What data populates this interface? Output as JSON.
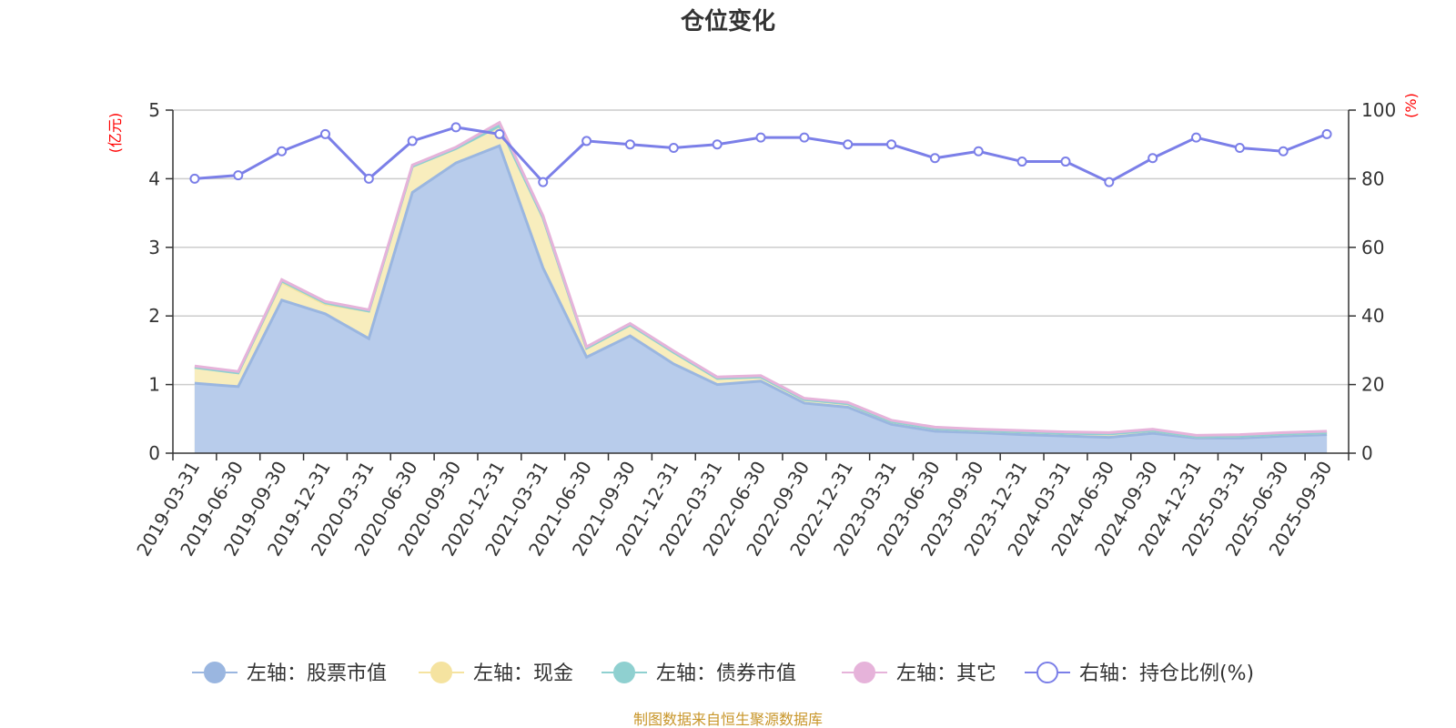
{
  "chart_data": {
    "type": "area",
    "title": "仓位变化",
    "source": "制图数据来自恒生聚源数据库",
    "left_unit": "(亿元)",
    "right_unit": "(%)",
    "ylim_left": [
      0,
      5
    ],
    "ylim_right": [
      0,
      100
    ],
    "yticks_left": [
      "0",
      "1",
      "2",
      "3",
      "4",
      "5"
    ],
    "yticks_right": [
      "0",
      "20",
      "40",
      "60",
      "80",
      "100"
    ],
    "categories": [
      "2019-03-31",
      "2019-06-30",
      "2019-09-30",
      "2019-12-31",
      "2020-03-31",
      "2020-06-30",
      "2020-09-30",
      "2020-12-31",
      "2021-03-31",
      "2021-06-30",
      "2021-09-30",
      "2021-12-31",
      "2022-03-31",
      "2022-06-30",
      "2022-09-30",
      "2022-12-31",
      "2023-03-31",
      "2023-06-30",
      "2023-09-30",
      "2023-12-31",
      "2024-03-31",
      "2024-06-30",
      "2024-09-30",
      "2024-12-31",
      "2025-03-31",
      "2025-06-30",
      "2025-09-30"
    ],
    "series": [
      {
        "name": "左轴：股票市值",
        "axis": "left",
        "stack": true,
        "color": "#9ab6e0",
        "fill": "#b8cceb",
        "values": [
          1.02,
          0.97,
          2.23,
          2.03,
          1.67,
          3.8,
          4.23,
          4.48,
          2.7,
          1.4,
          1.71,
          1.3,
          1.0,
          1.05,
          0.73,
          0.67,
          0.42,
          0.32,
          0.3,
          0.27,
          0.25,
          0.23,
          0.29,
          0.22,
          0.22,
          0.25,
          0.27
        ]
      },
      {
        "name": "左轴：现金",
        "axis": "left",
        "stack": true,
        "color": "#f5e3a0",
        "fill": "#f8edbd",
        "values": [
          0.23,
          0.2,
          0.26,
          0.14,
          0.4,
          0.38,
          0.21,
          0.29,
          0.73,
          0.13,
          0.16,
          0.17,
          0.09,
          0.06,
          0.05,
          0.05,
          0.04,
          0.04,
          0.03,
          0.04,
          0.04,
          0.05,
          0.04,
          0.02,
          0.03,
          0.03,
          0.03
        ]
      },
      {
        "name": "左轴：债券市值",
        "axis": "left",
        "stack": true,
        "color": "#8fd0d0",
        "fill": "#b7e2e2",
        "values": [
          0,
          0,
          0.02,
          0.02,
          0,
          0,
          0,
          0,
          0,
          0,
          0,
          0,
          0,
          0,
          0,
          0,
          0,
          0,
          0,
          0,
          0,
          0,
          0,
          0,
          0,
          0,
          0
        ]
      },
      {
        "name": "左轴：其它",
        "axis": "left",
        "stack": true,
        "color": "#e6b3da",
        "fill": "#f0cfe8",
        "values": [
          0.02,
          0.02,
          0.02,
          0.02,
          0.02,
          0.02,
          0.02,
          0.05,
          0.03,
          0.02,
          0.02,
          0.02,
          0.02,
          0.02,
          0.02,
          0.02,
          0.02,
          0.02,
          0.02,
          0.02,
          0.02,
          0.02,
          0.02,
          0.02,
          0.02,
          0.02,
          0.02
        ]
      },
      {
        "name": "右轴：持仓比例(%)",
        "axis": "right",
        "stack": false,
        "color": "#7b7fe8",
        "values": [
          80,
          81,
          88,
          93,
          80,
          91,
          95,
          93,
          79,
          91,
          90,
          89,
          90,
          92,
          92,
          90,
          90,
          86,
          88,
          85,
          85,
          79,
          86,
          92,
          89,
          88,
          93
        ]
      }
    ]
  }
}
